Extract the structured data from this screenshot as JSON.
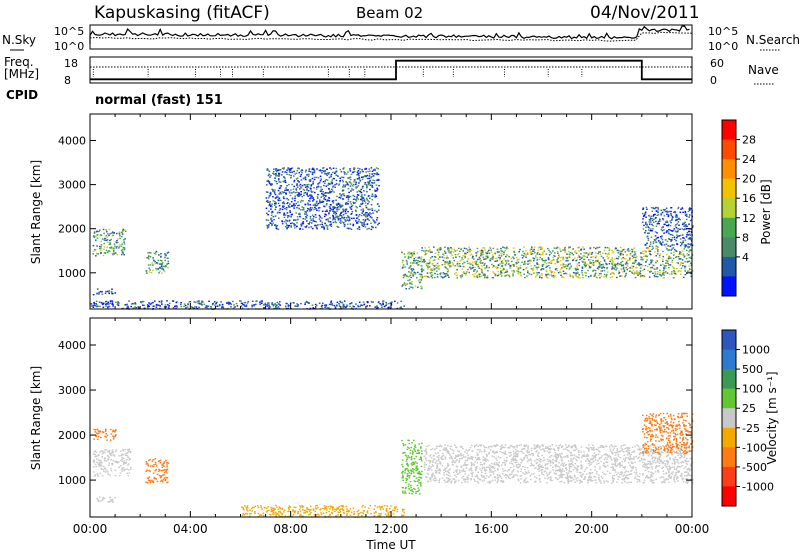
{
  "header": {
    "station": "Kapuskasing (fitACF)",
    "beam": "Beam 02",
    "date": "04/Nov/2011"
  },
  "nsky_panel": {
    "left_label": "N.Sky",
    "right_label": "N.Search",
    "left_ticks": [
      "10^5",
      "10^0"
    ],
    "right_ticks": [
      "10^5",
      "10^0"
    ]
  },
  "freq_panel": {
    "left_label_1": "Freq.",
    "left_label_2": "[MHz]",
    "right_label": "Nave",
    "left_ticks": [
      "18",
      "8"
    ],
    "right_ticks": [
      "60",
      "0"
    ]
  },
  "cpid": {
    "label": "CPID",
    "value": "normal (fast) 151"
  },
  "chart_data": [
    {
      "type": "heatmap",
      "name": "power",
      "ylabel": "Slant Range [km]",
      "xlabel": "",
      "ylim": [
        180,
        4600
      ],
      "xlim": [
        0,
        24
      ],
      "yticks": [
        1000,
        2000,
        3000,
        4000
      ],
      "colorbar": {
        "label": "Power [dB]",
        "ticks": [
          "28",
          "24",
          "20",
          "16",
          "12",
          "8",
          "4"
        ],
        "colors": [
          "#ff0000",
          "#ff4a00",
          "#ff8e00",
          "#f2c200",
          "#b4d233",
          "#49a651",
          "#4a8a6a",
          "#1f5aa8",
          "#0012ff"
        ]
      },
      "regions": [
        {
          "t0": 0.1,
          "t1": 1.4,
          "r0": 1400,
          "r1": 2000,
          "level": "mid"
        },
        {
          "t0": 0.1,
          "t1": 1.0,
          "r0": 520,
          "r1": 650,
          "level": "low"
        },
        {
          "t0": 2.2,
          "t1": 3.1,
          "r0": 1000,
          "r1": 1500,
          "level": "mid"
        },
        {
          "t0": 7.0,
          "t1": 11.5,
          "r0": 2000,
          "r1": 3400,
          "level": "low"
        },
        {
          "t0": 12.4,
          "t1": 13.2,
          "r0": 650,
          "r1": 1500,
          "level": "mid"
        },
        {
          "t0": 13.2,
          "t1": 24.0,
          "r0": 900,
          "r1": 1600,
          "level": "high"
        },
        {
          "t0": 22.0,
          "t1": 24.0,
          "r0": 1600,
          "r1": 2500,
          "level": "low"
        },
        {
          "t0": 0.0,
          "t1": 12.5,
          "r0": 190,
          "r1": 380,
          "level": "low"
        }
      ]
    },
    {
      "type": "heatmap",
      "name": "velocity",
      "ylabel": "Slant Range [km]",
      "xlabel": "Time UT",
      "ylim": [
        180,
        4600
      ],
      "xlim": [
        0,
        24
      ],
      "yticks": [
        1000,
        2000,
        3000,
        4000
      ],
      "xticks": [
        "00:00",
        "04:00",
        "08:00",
        "12:00",
        "16:00",
        "20:00",
        "00:00"
      ],
      "colorbar": {
        "label": "Velocity [m s⁻¹]",
        "ticks": [
          "1000",
          "500",
          "100",
          "25",
          "-25",
          "-100",
          "-500",
          "-1000"
        ],
        "colors": [
          "#2f56c0",
          "#2f7ad1",
          "#3a9a53",
          "#62c832",
          "#c8c8c8",
          "#f5a800",
          "#ff7a10",
          "#ff3d18",
          "#ff0000"
        ]
      },
      "regions": [
        {
          "t0": 0.1,
          "t1": 1.0,
          "r0": 1900,
          "r1": 2150,
          "color": "#ff7a10"
        },
        {
          "t0": 0.1,
          "t1": 1.6,
          "r0": 1100,
          "r1": 1700,
          "color": "#c8c8c8"
        },
        {
          "t0": 0.2,
          "t1": 1.0,
          "r0": 520,
          "r1": 650,
          "color": "#c8c8c8"
        },
        {
          "t0": 2.2,
          "t1": 3.1,
          "r0": 950,
          "r1": 1500,
          "color": "#ff7a10"
        },
        {
          "t0": 12.4,
          "t1": 13.2,
          "r0": 700,
          "r1": 1900,
          "color": "#62c832"
        },
        {
          "t0": 13.3,
          "t1": 24.0,
          "r0": 950,
          "r1": 1800,
          "color": "#c8c8c8"
        },
        {
          "t0": 22.0,
          "t1": 24.0,
          "r0": 1600,
          "r1": 2500,
          "color": "#ff7a10"
        },
        {
          "t0": 6.0,
          "t1": 12.5,
          "r0": 190,
          "r1": 450,
          "color": "#f5a800"
        }
      ]
    }
  ],
  "nave_series": {
    "freq_mhz": [
      {
        "t0": 0,
        "t1": 12.2,
        "v": 8
      },
      {
        "t0": 12.2,
        "t1": 22.0,
        "v": 18
      },
      {
        "t0": 22.0,
        "t1": 24,
        "v": 8
      }
    ]
  }
}
